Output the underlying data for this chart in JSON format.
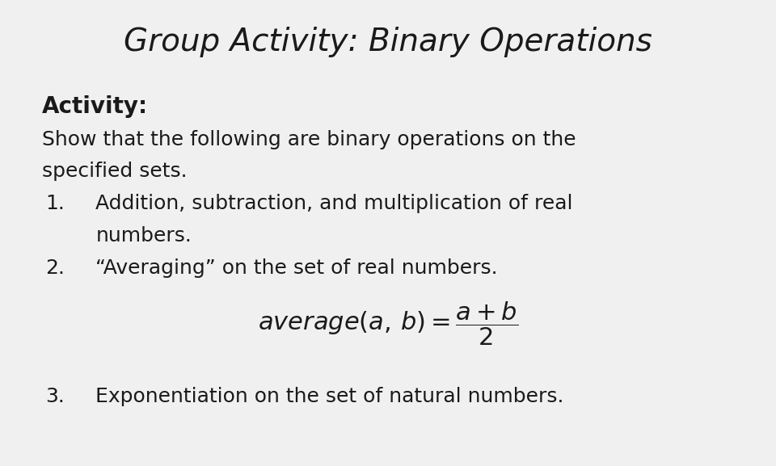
{
  "title": "Group Activity: Binary Operations",
  "title_fontsize": 28,
  "title_color": "#1a1a1a",
  "background_color": "#f0f0f0",
  "text_color": "#1a1a1a",
  "body_fontsize": 18,
  "activity_label": "Activity:",
  "activity_fontsize": 20,
  "desc_line1": "Show that the following are binary operations on the",
  "desc_line2": "specified sets.",
  "item1_num": "1.",
  "item1_line1": "Addition, subtraction, and multiplication of real",
  "item1_line2": "     numbers.",
  "item2_num": "2.",
  "item2_text": "“Averaging” on the set of real numbers.",
  "item3_num": "3.",
  "item3_text": "Exponentiation on the set of natural numbers.",
  "formula_fontsize": 22
}
